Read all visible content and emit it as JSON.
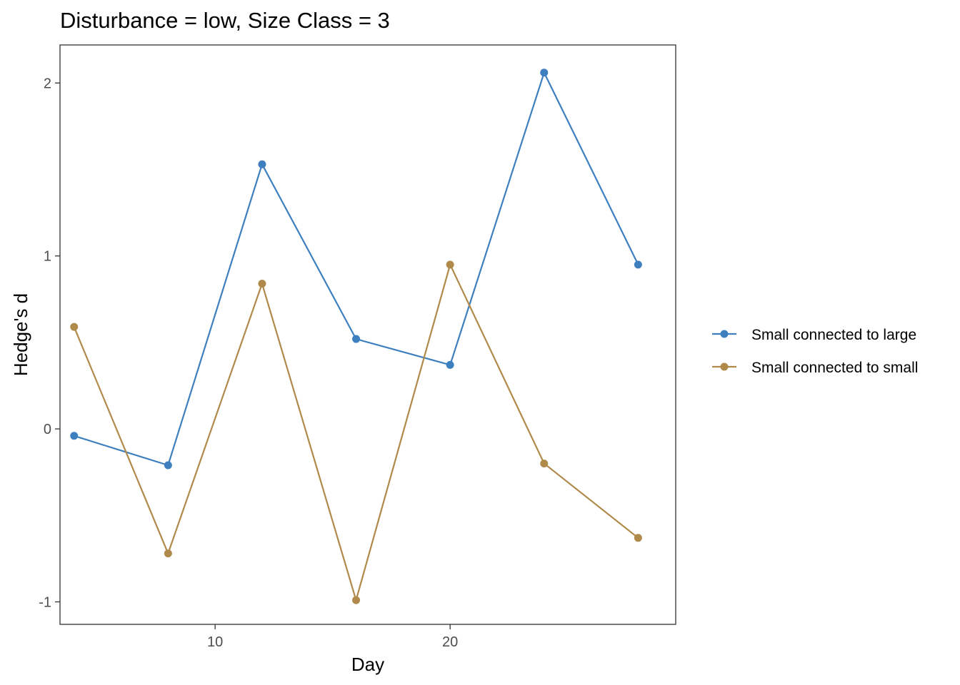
{
  "chart_data": {
    "type": "line",
    "title": "Disturbance = low, Size Class = 3",
    "xlabel": "Day",
    "ylabel": "Hedge's d",
    "xlim": [
      3.4,
      29.6
    ],
    "ylim": [
      -1.13,
      2.22
    ],
    "x_ticks": [
      10,
      20
    ],
    "x_tick_labels": [
      "10",
      "20"
    ],
    "y_ticks": [
      -1,
      0,
      1,
      2
    ],
    "y_tick_labels": [
      "-1",
      "0",
      "1",
      "2"
    ],
    "grid": false,
    "legend_position": "right",
    "x": [
      4,
      8,
      12,
      16,
      20,
      24,
      28
    ],
    "series": [
      {
        "name": "Small connected to large",
        "color": "#3d7fbf",
        "values": [
          -0.04,
          -0.21,
          1.53,
          0.52,
          0.37,
          2.06,
          0.95
        ]
      },
      {
        "name": "Small connected to small",
        "color": "#b08a4a",
        "values": [
          0.59,
          -0.72,
          0.84,
          -0.99,
          0.95,
          -0.2,
          -0.63
        ]
      }
    ]
  }
}
